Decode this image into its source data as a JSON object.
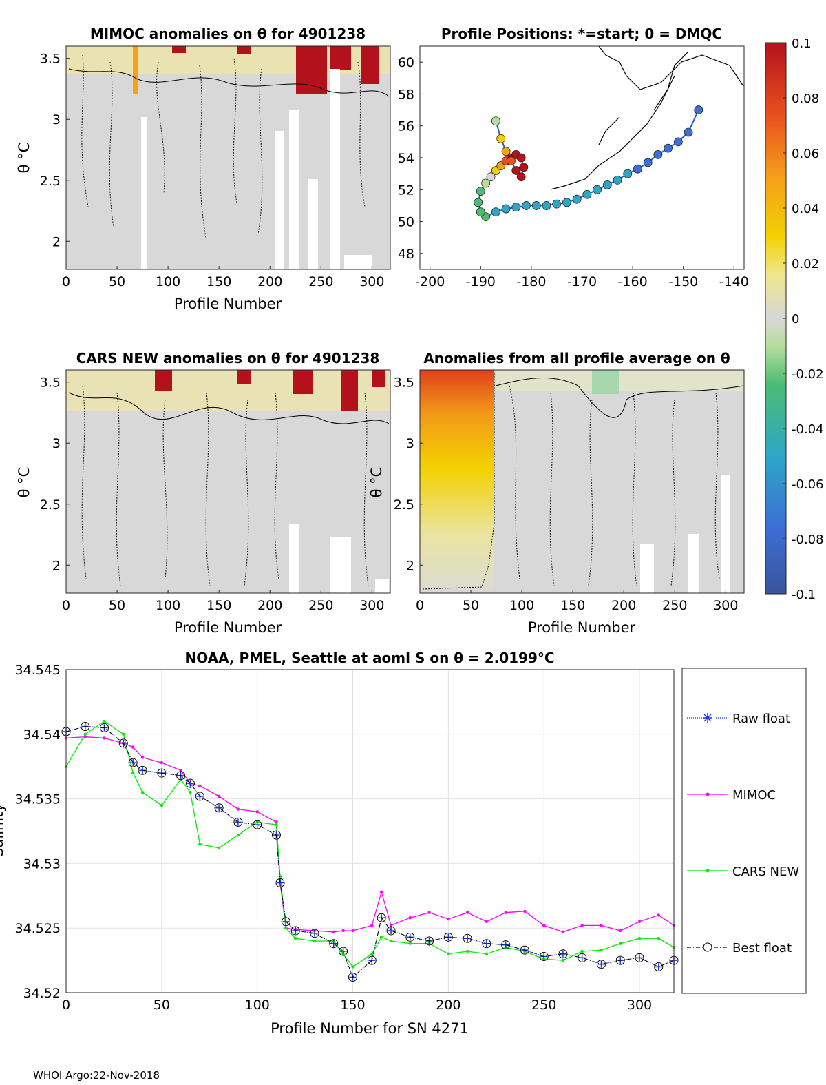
{
  "footer": "WHOI Argo:22-Nov-2018",
  "panels": {
    "mimoc": {
      "title": "MIMOC anomalies on θ  for 4901238",
      "xlabel": "Profile Number",
      "ylabel": "θ °C",
      "xticks": [
        0,
        50,
        100,
        150,
        200,
        250,
        300
      ],
      "yticks": [
        2,
        2.5,
        3,
        3.5
      ],
      "xlim": [
        0,
        318
      ],
      "ylim": [
        1.77,
        3.6
      ]
    },
    "map": {
      "title": "Profile Positions: *=start; 0 = DMQC",
      "xticks": [
        -200,
        -190,
        -180,
        -170,
        -160,
        -150,
        -140
      ],
      "yticks": [
        48,
        50,
        52,
        54,
        56,
        58,
        60
      ],
      "xlim": [
        -202,
        -138
      ],
      "ylim": [
        47,
        61
      ],
      "track_lon": [
        -147,
        -149,
        -151,
        -153,
        -155,
        -157,
        -159,
        -161,
        -163,
        -165,
        -167,
        -169,
        -171,
        -173,
        -175,
        -177,
        -179,
        -181,
        -183,
        -185,
        -187,
        -189,
        -190,
        -190.5,
        -190,
        -189,
        -188,
        -187,
        -186,
        -185,
        -184,
        -183,
        -182,
        -181.5,
        -182,
        -183,
        -184,
        -185,
        -186,
        -187
      ],
      "track_lat": [
        57,
        55.6,
        55,
        54.6,
        54.2,
        53.7,
        53.3,
        53,
        52.6,
        52.3,
        52,
        51.7,
        51.4,
        51.2,
        51.1,
        51.0,
        51.0,
        51.0,
        50.9,
        50.8,
        50.6,
        50.3,
        50.6,
        51.2,
        51.9,
        52.4,
        52.8,
        53.2,
        53.5,
        53.8,
        54.0,
        54.2,
        54.0,
        53.4,
        52.8,
        53.2,
        53.8,
        54.4,
        55.2,
        56.3
      ],
      "track_anom": [
        -0.085,
        -0.085,
        -0.084,
        -0.083,
        -0.082,
        -0.081,
        -0.08,
        -0.079,
        -0.078,
        -0.077,
        -0.076,
        -0.075,
        -0.074,
        -0.073,
        -0.072,
        -0.07,
        -0.066,
        -0.063,
        -0.06,
        -0.055,
        -0.05,
        -0.047,
        -0.045,
        -0.04,
        -0.03,
        -0.02,
        0.0,
        0.02,
        0.04,
        0.06,
        0.08,
        0.095,
        0.1,
        0.1,
        0.09,
        0.08,
        0.07,
        0.05,
        0.02,
        -0.02
      ]
    },
    "colorbar": {
      "ticks": [
        0.1,
        0.08,
        0.06,
        0.04,
        0.02,
        0,
        -0.02,
        -0.04,
        -0.06,
        -0.08,
        -0.1
      ],
      "tick_labels": [
        "0.1",
        "0.08",
        "0.06",
        "0.04",
        "0.02",
        "0",
        "-0.02",
        "-0.04",
        "-0.06",
        "-0.08",
        "-0.1"
      ]
    },
    "cars": {
      "title": "CARS NEW anomalies on θ for 4901238",
      "xlabel": "Profile Number",
      "ylabel": "θ °C",
      "xticks": [
        0,
        50,
        100,
        150,
        200,
        250,
        300
      ],
      "yticks": [
        2,
        2.5,
        3,
        3.5
      ],
      "xlim": [
        0,
        318
      ],
      "ylim": [
        1.77,
        3.6
      ]
    },
    "allprof": {
      "title": "Anomalies from all profile average on θ",
      "xlabel": "Profile Number",
      "ylabel": "θ °C",
      "xticks": [
        0,
        50,
        100,
        150,
        200,
        250,
        300
      ],
      "yticks": [
        2,
        2.5,
        3,
        3.5
      ],
      "xlim": [
        0,
        318
      ],
      "ylim": [
        1.77,
        3.6
      ]
    }
  },
  "chart_data": {
    "type": "line",
    "title": "NOAA, PMEL, Seattle at aoml S on θ = 2.0199°C",
    "xlabel": "Profile Number for SN 4271",
    "ylabel": "Salinity",
    "xlim": [
      0,
      318
    ],
    "ylim": [
      34.52,
      34.545
    ],
    "xticks": [
      0,
      50,
      100,
      150,
      200,
      250,
      300
    ],
    "yticks": [
      34.52,
      34.525,
      34.53,
      34.535,
      34.54,
      34.545
    ],
    "ytick_labels": [
      "34.52",
      "34.525",
      "34.53",
      "34.535",
      "34.54",
      "34.545"
    ],
    "grid": true,
    "legend_position": "outside-right",
    "x": [
      0,
      10,
      20,
      30,
      35,
      40,
      50,
      60,
      65,
      70,
      80,
      90,
      100,
      110,
      112,
      115,
      120,
      130,
      140,
      145,
      150,
      160,
      165,
      170,
      180,
      190,
      200,
      210,
      220,
      230,
      240,
      250,
      260,
      270,
      280,
      290,
      300,
      310,
      318
    ],
    "series": [
      {
        "name": "Raw float",
        "values": [
          34.5402,
          34.5406,
          34.5405,
          34.5393,
          34.5378,
          34.5372,
          34.537,
          34.5368,
          34.5362,
          34.5352,
          34.5343,
          34.5332,
          34.533,
          34.5322,
          34.5285,
          34.5255,
          34.5248,
          34.5246,
          34.5238,
          34.5232,
          34.5212,
          34.5225,
          34.5258,
          34.5248,
          34.5243,
          34.524,
          34.5243,
          34.5242,
          34.5238,
          34.5237,
          34.5233,
          34.5228,
          34.523,
          34.5227,
          34.5222,
          34.5225,
          34.5227,
          34.522,
          34.5225
        ],
        "color": "#1a35d8"
      },
      {
        "name": "MIMOC",
        "values": [
          34.5397,
          34.5398,
          34.5397,
          34.5393,
          34.539,
          34.5382,
          34.5378,
          34.5372,
          34.5362,
          34.536,
          34.5352,
          34.5342,
          34.534,
          34.5332,
          34.5285,
          34.525,
          34.5249,
          34.5248,
          34.5247,
          34.5248,
          34.5248,
          34.5252,
          34.5278,
          34.5252,
          34.5258,
          34.5262,
          34.5257,
          34.5262,
          34.5255,
          34.5262,
          34.5263,
          34.5252,
          34.5247,
          34.5252,
          34.5252,
          34.5248,
          34.5255,
          34.526,
          34.5252
        ],
        "color": "#ff00ff"
      },
      {
        "name": "CARS NEW",
        "values": [
          34.5375,
          34.54,
          34.541,
          34.54,
          34.537,
          34.5355,
          34.5345,
          34.5365,
          34.5355,
          34.5315,
          34.5312,
          34.5322,
          34.5332,
          34.533,
          34.529,
          34.525,
          34.5242,
          34.524,
          34.524,
          34.523,
          34.522,
          34.523,
          34.5243,
          34.524,
          34.5238,
          34.5238,
          34.523,
          34.5232,
          34.523,
          34.5235,
          34.5232,
          34.5226,
          34.5225,
          34.5232,
          34.5233,
          34.5238,
          34.5242,
          34.5242,
          34.5235
        ],
        "color": "#00ee00"
      },
      {
        "name": "Best float",
        "values": [
          34.5402,
          34.5406,
          34.5405,
          34.5393,
          34.5378,
          34.5372,
          34.537,
          34.5368,
          34.5362,
          34.5352,
          34.5343,
          34.5332,
          34.533,
          34.5322,
          34.5285,
          34.5255,
          34.5248,
          34.5246,
          34.5238,
          34.5232,
          34.5212,
          34.5225,
          34.5258,
          34.5248,
          34.5243,
          34.524,
          34.5243,
          34.5242,
          34.5238,
          34.5237,
          34.5233,
          34.5228,
          34.523,
          34.5227,
          34.5222,
          34.5225,
          34.5227,
          34.522,
          34.5225
        ],
        "color": "#000000"
      }
    ]
  }
}
